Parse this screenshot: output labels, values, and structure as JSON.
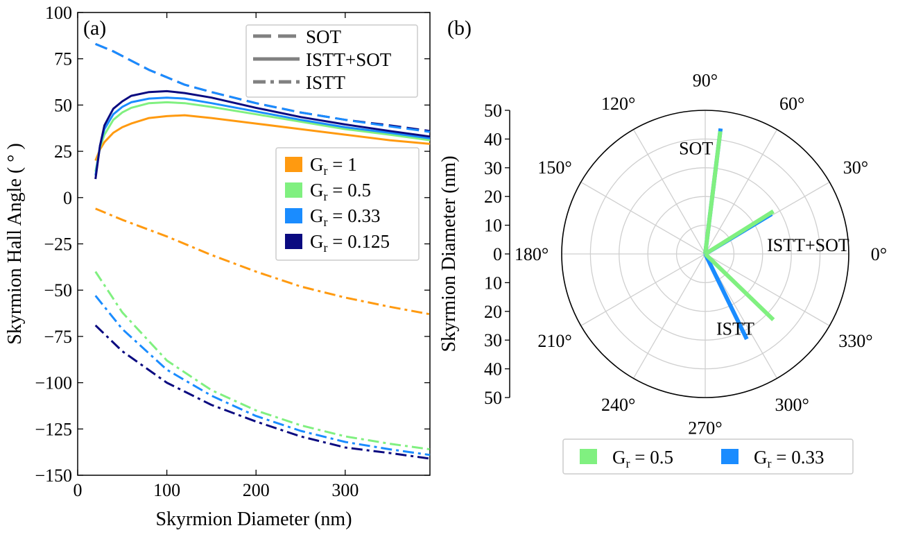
{
  "panels": {
    "a": "(a)",
    "b": "(b)"
  },
  "chart_data": [
    {
      "type": "line",
      "panel": "(a)",
      "xlabel": "Skyrmion Diameter (nm)",
      "ylabel": "Skyrmion Hall Angle ( ° )",
      "xlim": [
        0,
        395
      ],
      "ylim": [
        -150,
        100
      ],
      "xticks": [
        0,
        100,
        200,
        300
      ],
      "yticks": [
        100,
        75,
        50,
        25,
        0,
        -25,
        -50,
        -75,
        -100,
        -125,
        -150
      ],
      "ytick_labels": [
        "100",
        "75",
        "50",
        "25",
        "0",
        "−25",
        "−50",
        "−75",
        "−100",
        "−125",
        "−150"
      ],
      "grid": false,
      "style_legend": {
        "placement": "top-right",
        "entries": [
          {
            "label": "SOT",
            "dash": "dashed"
          },
          {
            "label": "ISTT+SOT",
            "dash": "solid"
          },
          {
            "label": "ISTT",
            "dash": "dashdot"
          }
        ]
      },
      "color_legend": {
        "placement": "center-right",
        "entries": [
          {
            "label_main": "G",
            "label_sub": "r",
            "label_rest": " = 1",
            "color": "#ff9a10"
          },
          {
            "label_main": "G",
            "label_sub": "r",
            "label_rest": " = 0.5",
            "color": "#80f080"
          },
          {
            "label_main": "G",
            "label_sub": "r",
            "label_rest": " = 0.33",
            "color": "#1a8cff"
          },
          {
            "label_main": "G",
            "label_sub": "r",
            "label_rest": " = 0.125",
            "color": "#0a0a80"
          }
        ]
      },
      "series": [
        {
          "group": "SOT",
          "color": "#0a0a80",
          "dash": "dashed",
          "x": [
            20,
            40,
            60,
            80,
            100,
            120,
            150,
            200,
            250,
            300,
            350,
            395
          ],
          "y": [
            83,
            79,
            74,
            69,
            65,
            61,
            57,
            51,
            46,
            42,
            39,
            36
          ]
        },
        {
          "group": "SOT",
          "color": "#1a8cff",
          "dash": "dashed",
          "x": [
            20,
            40,
            60,
            80,
            100,
            120,
            150,
            200,
            250,
            300,
            350,
            395
          ],
          "y": [
            83,
            79,
            74,
            69,
            65,
            61,
            57,
            51,
            46,
            42,
            38.5,
            35.5
          ]
        },
        {
          "group": "ISTT+SOT",
          "color": "#ff9a10",
          "dash": "solid",
          "x": [
            20,
            25,
            30,
            40,
            50,
            60,
            80,
            100,
            120,
            150,
            200,
            250,
            300,
            350,
            395
          ],
          "y": [
            20,
            26,
            30,
            35,
            38,
            40,
            43,
            44,
            44.5,
            43,
            40,
            37,
            34,
            31,
            29
          ]
        },
        {
          "group": "ISTT+SOT",
          "color": "#80f080",
          "dash": "solid",
          "x": [
            20,
            25,
            30,
            40,
            50,
            60,
            80,
            100,
            120,
            150,
            200,
            250,
            300,
            350,
            395
          ],
          "y": [
            14,
            27,
            34,
            42,
            46,
            48.5,
            51,
            51.5,
            51,
            49,
            45,
            41,
            37,
            34,
            31
          ]
        },
        {
          "group": "ISTT+SOT",
          "color": "#1a8cff",
          "dash": "solid",
          "x": [
            20,
            25,
            30,
            40,
            50,
            60,
            80,
            100,
            120,
            150,
            200,
            250,
            300,
            350,
            395
          ],
          "y": [
            12,
            28,
            37,
            45,
            49,
            51.5,
            53.5,
            54,
            53.5,
            51,
            46.5,
            42,
            38,
            35,
            32
          ]
        },
        {
          "group": "ISTT+SOT",
          "color": "#0a0a80",
          "dash": "solid",
          "x": [
            20,
            25,
            30,
            40,
            50,
            60,
            80,
            100,
            120,
            150,
            200,
            250,
            300,
            350,
            395
          ],
          "y": [
            10,
            28,
            39,
            48,
            52,
            55,
            57,
            57.5,
            56.5,
            54,
            48.5,
            43.5,
            39.5,
            36,
            33
          ]
        },
        {
          "group": "ISTT",
          "color": "#ff9a10",
          "dash": "dashdot",
          "x": [
            20,
            50,
            100,
            150,
            200,
            250,
            300,
            350,
            395
          ],
          "y": [
            -6,
            -12,
            -21,
            -31,
            -40,
            -48,
            -54,
            -59,
            -63
          ]
        },
        {
          "group": "ISTT",
          "color": "#80f080",
          "dash": "dashdot",
          "x": [
            20,
            50,
            100,
            150,
            200,
            250,
            300,
            350,
            395
          ],
          "y": [
            -40,
            -62,
            -88,
            -104,
            -115,
            -123,
            -129,
            -133,
            -136
          ]
        },
        {
          "group": "ISTT",
          "color": "#1a8cff",
          "dash": "dashdot",
          "x": [
            20,
            50,
            100,
            150,
            200,
            250,
            300,
            350,
            395
          ],
          "y": [
            -53,
            -71,
            -93,
            -107,
            -118,
            -126,
            -132,
            -136,
            -139
          ]
        },
        {
          "group": "ISTT",
          "color": "#0a0a80",
          "dash": "dashdot",
          "x": [
            20,
            50,
            100,
            150,
            200,
            250,
            300,
            350,
            395
          ],
          "y": [
            -69,
            -83,
            -100,
            -112,
            -121,
            -129,
            -135,
            -138,
            -141
          ]
        }
      ]
    },
    {
      "type": "polar",
      "panel": "(b)",
      "ylabel": "Skyrmion Diameter (nm)",
      "rlim": [
        0,
        50
      ],
      "rticks": [
        50,
        40,
        30,
        20,
        10,
        0,
        10,
        20,
        30,
        40,
        50
      ],
      "angle_labels": [
        "0°",
        "30°",
        "60°",
        "90°",
        "120°",
        "150°",
        "180°",
        "210°",
        "240°",
        "270°",
        "300°",
        "330°"
      ],
      "angles": [
        0,
        30,
        60,
        90,
        120,
        150,
        180,
        210,
        240,
        270,
        300,
        330
      ],
      "grid": true,
      "annotations": [
        {
          "text": "SOT",
          "angle": 95,
          "r": 37
        },
        {
          "text": "ISTT+SOT",
          "angle": 5,
          "r": 36
        },
        {
          "text": "ISTT",
          "angle": 292,
          "r": 28
        }
      ],
      "legend": {
        "placement": "bottom",
        "entries": [
          {
            "label_main": "G",
            "label_sub": "r",
            "label_rest": " = 0.5",
            "color": "#80f080"
          },
          {
            "label_main": "G",
            "label_sub": "r",
            "label_rest": " = 0.33",
            "color": "#1a8cff"
          }
        ]
      },
      "series": [
        {
          "group": "SOT",
          "color": "#1a8cff",
          "angle": [
            83,
            83
          ],
          "r": [
            0,
            44
          ]
        },
        {
          "group": "SOT",
          "color": "#80f080",
          "angle": [
            83,
            83
          ],
          "r": [
            0,
            43
          ]
        },
        {
          "group": "ISTT+SOT",
          "color": "#1a8cff",
          "angle": [
            32,
            31
          ],
          "r": [
            0,
            27
          ]
        },
        {
          "group": "ISTT+SOT",
          "color": "#80f080",
          "angle": [
            33,
            32
          ],
          "r": [
            0,
            28
          ]
        },
        {
          "group": "ISTT",
          "color": "#1a8cff",
          "angle": [
            297,
            296
          ],
          "r": [
            0,
            33
          ]
        },
        {
          "group": "ISTT",
          "color": "#80f080",
          "angle": [
            317,
            316
          ],
          "r": [
            0,
            33
          ]
        }
      ]
    }
  ]
}
